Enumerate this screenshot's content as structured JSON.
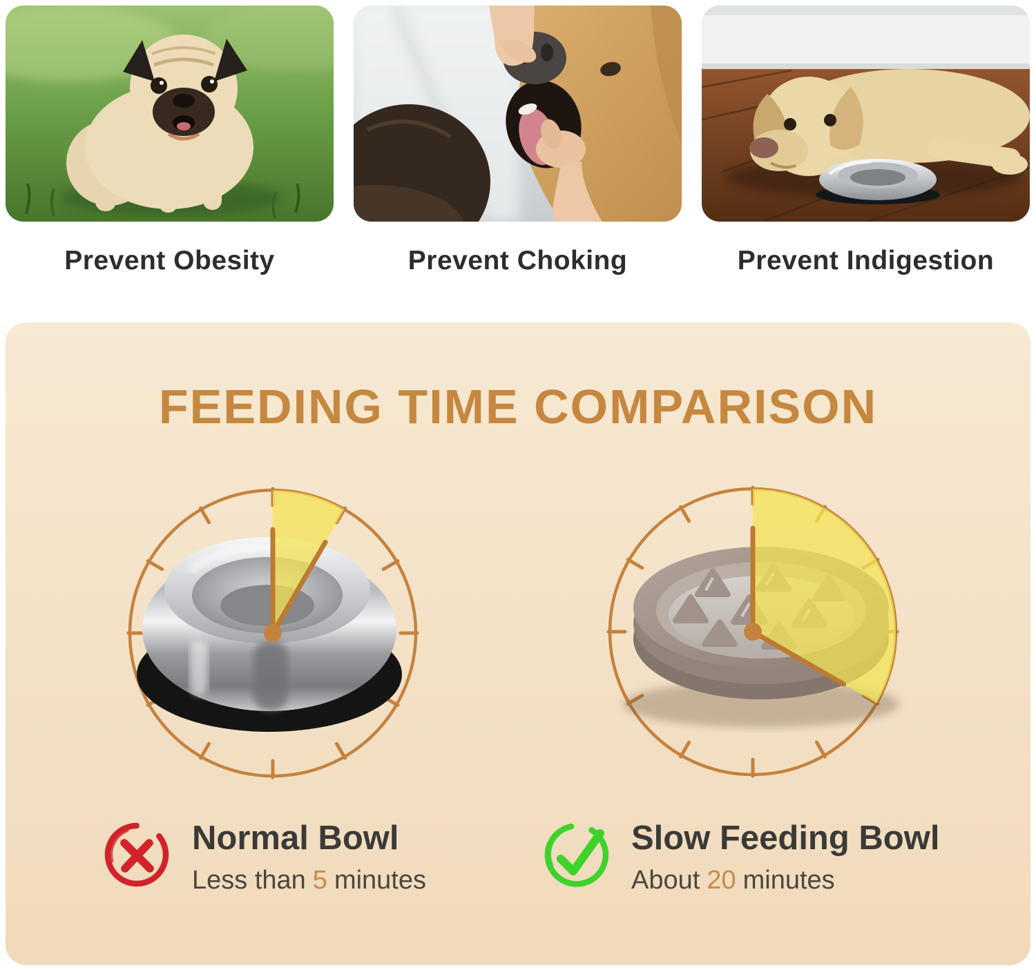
{
  "benefits": [
    {
      "caption": "Prevent Obesity",
      "photo": "obese-pug-on-grass"
    },
    {
      "caption": "Prevent Choking",
      "photo": "owner-checking-dog-mouth"
    },
    {
      "caption": "Prevent Indigestion",
      "photo": "labrador-lying-beside-bowl"
    }
  ],
  "comparison": {
    "title": "FEEDING TIME COMPARISON",
    "clocks": [
      {
        "name": "normal-bowl-clock",
        "bowl": "stainless-steel-bowl",
        "minutes": 5,
        "wedge_start_deg": 0,
        "wedge_end_deg": 30
      },
      {
        "name": "slow-feeding-bowl-clock",
        "bowl": "slow-feeder-maze-bowl",
        "minutes": 20,
        "wedge_start_deg": 0,
        "wedge_end_deg": 120
      }
    ],
    "results": [
      {
        "icon": "red-cross-icon",
        "title": "Normal Bowl",
        "detail_prefix": "Less than",
        "detail_value": "5",
        "detail_suffix": "minutes"
      },
      {
        "icon": "green-check-icon",
        "title": "Slow Feeding Bowl",
        "detail_prefix": "About",
        "detail_value": "20",
        "detail_suffix": "minutes"
      }
    ]
  },
  "colors": {
    "accent": "#c5823c",
    "accent_dark": "#bd7a31",
    "wedge": "#f3e354",
    "panel_top": "#f7e9d2",
    "panel_bottom": "#f0dabb",
    "heading": "#c6873f",
    "caption_text": "#2d2d2d",
    "title_text": "#3b3a37",
    "detail_text": "#4c473d",
    "number": "#c98a4b",
    "cross_red": "#d2232a",
    "check_green": "#3ed32c"
  }
}
